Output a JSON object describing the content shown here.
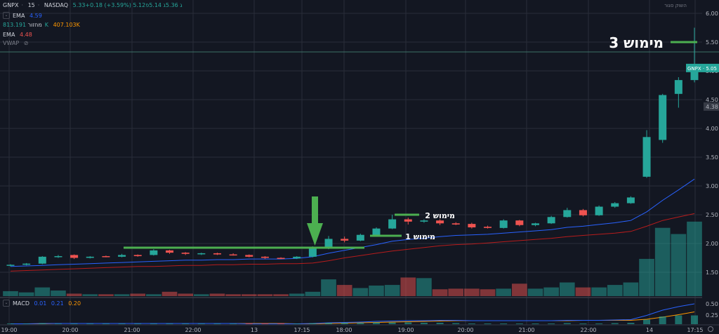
{
  "header": {
    "symbol": "GNPX",
    "interval": "15",
    "exchange": "NASDAQ",
    "ohlc_text": "5.33+0.18 (+3.59%) 5.12ג 5.36ג 5.14פ",
    "ema1_label": "EMA",
    "ema1_value": "4.59",
    "volume_label": "מחזור",
    "volume_value1": "813.191K",
    "volume_value2": "407.103K",
    "ema2_label": "EMA",
    "ema2_value": "4.48",
    "vwap_label": "VWAP",
    "macd_label": "MACD",
    "macd_v1": "0.01",
    "macd_v2": "0.21",
    "macd_v3": "0.20",
    "top_right": "השוק סגור"
  },
  "price_axis": {
    "ticks": [
      "6.00",
      "5.50",
      "5.00",
      "4.50",
      "4.00",
      "3.50",
      "3.00",
      "2.50",
      "2.00",
      "1.50"
    ],
    "current_price_label": "GNPX · 5.05",
    "other_price_label": "4.38"
  },
  "macd_axis": {
    "ticks": [
      "0.50",
      "0.25"
    ]
  },
  "time_axis": {
    "ticks": [
      "19:00",
      "20:00",
      "21:00",
      "22:00",
      "13",
      "17:15",
      "18:00",
      "19:00",
      "20:00",
      "21:00",
      "22:00",
      "14",
      "17:15"
    ]
  },
  "annotations": {
    "level3": "מימוש 3",
    "level2": "מימוש 2",
    "level1": "מימוש 1"
  },
  "colors": {
    "up": "#26a69a",
    "down": "#ef5350",
    "ema_blue": "#2962ff",
    "ema_red": "#b71c1c",
    "marker": "#4caf50",
    "bg": "#131722"
  },
  "chart_data": {
    "type": "candlestick",
    "yrange": [
      1.1,
      6.2
    ],
    "candles": [
      {
        "o": 1.62,
        "h": 1.64,
        "l": 1.6,
        "c": 1.63
      },
      {
        "o": 1.63,
        "h": 1.66,
        "l": 1.62,
        "c": 1.65
      },
      {
        "o": 1.65,
        "h": 1.78,
        "l": 1.64,
        "c": 1.77
      },
      {
        "o": 1.77,
        "h": 1.8,
        "l": 1.75,
        "c": 1.78
      },
      {
        "o": 1.8,
        "h": 1.81,
        "l": 1.73,
        "c": 1.75
      },
      {
        "o": 1.75,
        "h": 1.78,
        "l": 1.74,
        "c": 1.77
      },
      {
        "o": 1.78,
        "h": 1.79,
        "l": 1.76,
        "c": 1.77
      },
      {
        "o": 1.77,
        "h": 1.82,
        "l": 1.76,
        "c": 1.8
      },
      {
        "o": 1.8,
        "h": 1.81,
        "l": 1.77,
        "c": 1.78
      },
      {
        "o": 1.8,
        "h": 1.9,
        "l": 1.79,
        "c": 1.88
      },
      {
        "o": 1.88,
        "h": 1.89,
        "l": 1.82,
        "c": 1.84
      },
      {
        "o": 1.84,
        "h": 1.85,
        "l": 1.8,
        "c": 1.82
      },
      {
        "o": 1.82,
        "h": 1.84,
        "l": 1.8,
        "c": 1.83
      },
      {
        "o": 1.83,
        "h": 1.84,
        "l": 1.8,
        "c": 1.81
      },
      {
        "o": 1.81,
        "h": 1.83,
        "l": 1.79,
        "c": 1.8
      },
      {
        "o": 1.8,
        "h": 1.81,
        "l": 1.76,
        "c": 1.77
      },
      {
        "o": 1.77,
        "h": 1.78,
        "l": 1.73,
        "c": 1.75
      },
      {
        "o": 1.75,
        "h": 1.76,
        "l": 1.73,
        "c": 1.74
      },
      {
        "o": 1.74,
        "h": 1.78,
        "l": 1.73,
        "c": 1.77
      },
      {
        "o": 1.77,
        "h": 1.95,
        "l": 1.76,
        "c": 1.93
      },
      {
        "o": 1.93,
        "h": 2.13,
        "l": 1.9,
        "c": 2.08
      },
      {
        "o": 2.08,
        "h": 2.12,
        "l": 2.02,
        "c": 2.05
      },
      {
        "o": 2.05,
        "h": 2.17,
        "l": 2.04,
        "c": 2.15
      },
      {
        "o": 2.15,
        "h": 2.28,
        "l": 2.14,
        "c": 2.26
      },
      {
        "o": 2.26,
        "h": 2.5,
        "l": 2.25,
        "c": 2.42
      },
      {
        "o": 2.42,
        "h": 2.45,
        "l": 2.33,
        "c": 2.38
      },
      {
        "o": 2.38,
        "h": 2.42,
        "l": 2.36,
        "c": 2.4
      },
      {
        "o": 2.4,
        "h": 2.42,
        "l": 2.32,
        "c": 2.35
      },
      {
        "o": 2.35,
        "h": 2.37,
        "l": 2.32,
        "c": 2.33
      },
      {
        "o": 2.34,
        "h": 2.36,
        "l": 2.26,
        "c": 2.28
      },
      {
        "o": 2.29,
        "h": 2.31,
        "l": 2.26,
        "c": 2.27
      },
      {
        "o": 2.27,
        "h": 2.42,
        "l": 2.26,
        "c": 2.4
      },
      {
        "o": 2.4,
        "h": 2.41,
        "l": 2.3,
        "c": 2.32
      },
      {
        "o": 2.32,
        "h": 2.36,
        "l": 2.3,
        "c": 2.35
      },
      {
        "o": 2.35,
        "h": 2.48,
        "l": 2.34,
        "c": 2.46
      },
      {
        "o": 2.46,
        "h": 2.62,
        "l": 2.45,
        "c": 2.58
      },
      {
        "o": 2.58,
        "h": 2.6,
        "l": 2.47,
        "c": 2.49
      },
      {
        "o": 2.49,
        "h": 2.66,
        "l": 2.48,
        "c": 2.64
      },
      {
        "o": 2.64,
        "h": 2.72,
        "l": 2.62,
        "c": 2.7
      },
      {
        "o": 2.7,
        "h": 2.82,
        "l": 2.69,
        "c": 2.8
      },
      {
        "o": 3.16,
        "h": 3.97,
        "l": 3.14,
        "c": 3.85
      },
      {
        "o": 3.8,
        "h": 4.6,
        "l": 3.75,
        "c": 4.58
      },
      {
        "o": 4.6,
        "h": 4.89,
        "l": 4.36,
        "c": 4.84
      },
      {
        "o": 4.84,
        "h": 5.75,
        "l": 4.8,
        "c": 5.05
      }
    ],
    "volumes": [
      8,
      6,
      14,
      9,
      4,
      3,
      3,
      3,
      4,
      3,
      7,
      4,
      3,
      4,
      3,
      3,
      3,
      3,
      4,
      7,
      27,
      18,
      13,
      17,
      18,
      30,
      29,
      11,
      12,
      12,
      11,
      12,
      20,
      12,
      14,
      22,
      14,
      14,
      18,
      22,
      60,
      110,
      100,
      120
    ],
    "ema_blue": [
      1.6,
      1.61,
      1.62,
      1.63,
      1.64,
      1.65,
      1.66,
      1.67,
      1.68,
      1.69,
      1.7,
      1.71,
      1.71,
      1.72,
      1.72,
      1.73,
      1.73,
      1.73,
      1.74,
      1.77,
      1.83,
      1.88,
      1.93,
      1.98,
      2.04,
      2.07,
      2.09,
      2.12,
      2.14,
      2.15,
      2.16,
      2.18,
      2.2,
      2.22,
      2.24,
      2.28,
      2.3,
      2.33,
      2.36,
      2.4,
      2.55,
      2.75,
      2.93,
      3.12
    ],
    "ema_red": [
      1.52,
      1.53,
      1.54,
      1.55,
      1.56,
      1.57,
      1.58,
      1.59,
      1.6,
      1.6,
      1.61,
      1.62,
      1.62,
      1.63,
      1.63,
      1.64,
      1.64,
      1.65,
      1.65,
      1.66,
      1.7,
      1.75,
      1.79,
      1.83,
      1.87,
      1.9,
      1.93,
      1.96,
      1.98,
      1.99,
      2.01,
      2.03,
      2.05,
      2.07,
      2.09,
      2.12,
      2.14,
      2.16,
      2.18,
      2.21,
      2.3,
      2.4,
      2.46,
      2.52
    ],
    "macd_line": [
      0.01,
      0.01,
      0.02,
      0.02,
      0.02,
      0.02,
      0.02,
      0.02,
      0.02,
      0.02,
      0.02,
      0.02,
      0.02,
      0.02,
      0.02,
      0.01,
      0.01,
      0.01,
      0.01,
      0.02,
      0.04,
      0.05,
      0.06,
      0.08,
      0.09,
      0.1,
      0.1,
      0.11,
      0.11,
      0.1,
      0.1,
      0.1,
      0.1,
      0.1,
      0.1,
      0.11,
      0.11,
      0.11,
      0.12,
      0.13,
      0.25,
      0.4,
      0.5,
      0.58
    ],
    "signal_line": [
      0.01,
      0.01,
      0.01,
      0.02,
      0.02,
      0.02,
      0.02,
      0.02,
      0.02,
      0.02,
      0.02,
      0.02,
      0.02,
      0.02,
      0.02,
      0.02,
      0.02,
      0.02,
      0.01,
      0.01,
      0.02,
      0.03,
      0.04,
      0.05,
      0.06,
      0.07,
      0.08,
      0.09,
      0.1,
      0.1,
      0.1,
      0.1,
      0.1,
      0.1,
      0.1,
      0.1,
      0.11,
      0.11,
      0.11,
      0.11,
      0.14,
      0.2,
      0.27,
      0.35
    ]
  }
}
